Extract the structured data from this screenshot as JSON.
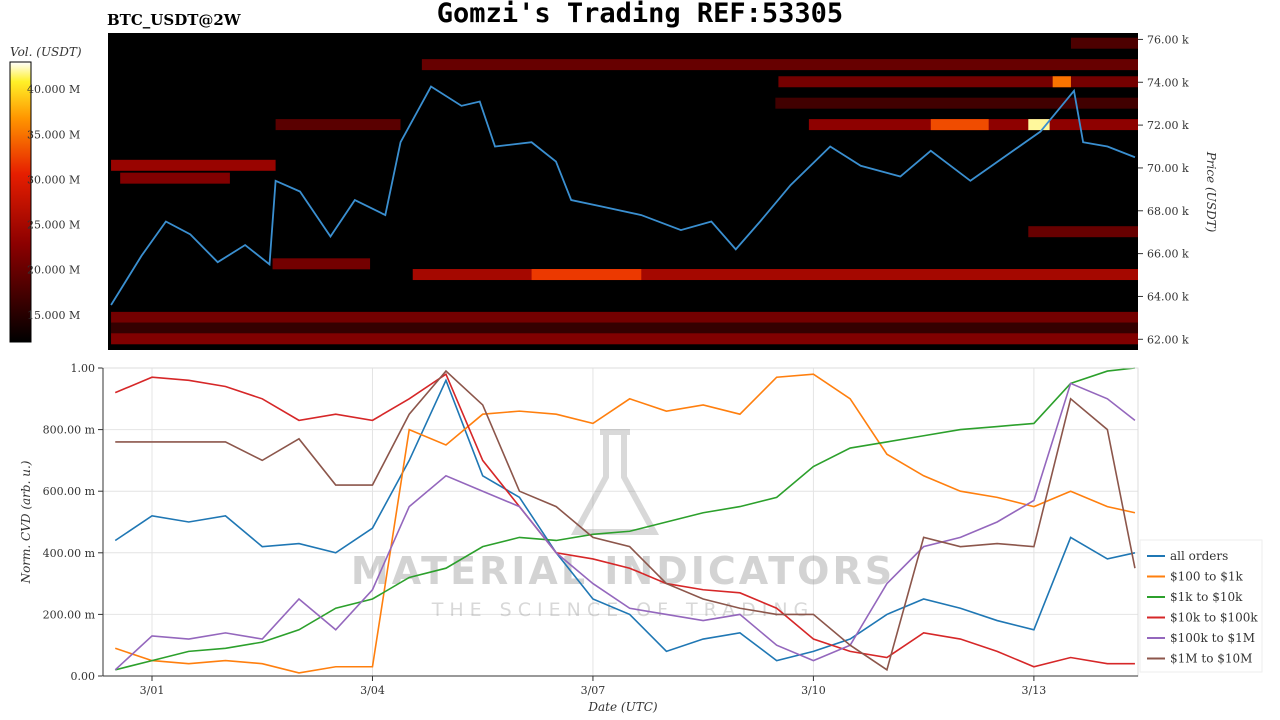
{
  "header": {
    "title": "Gomzi's Trading REF:53305",
    "pair": "BTC_USDT@2W"
  },
  "watermark": {
    "line1": "MATERIAL INDICATORS",
    "line2": "THE SCIENCE OF TRADING"
  },
  "chart_data": [
    {
      "type": "heatmap",
      "ylabel": "Price (USDT)",
      "ylim": [
        61.5,
        76.3
      ],
      "yticks": [
        62,
        64,
        66,
        68,
        70,
        72,
        74,
        76
      ],
      "ytick_labels": [
        "62.00 k",
        "64.00 k",
        "66.00 k",
        "68.00 k",
        "70.00 k",
        "72.00 k",
        "74.00 k",
        "76.00 k"
      ],
      "xlim": [
        "2/29 08:00",
        "3/14 10:00"
      ],
      "colorbar": {
        "label": "Vol. (USDT)",
        "range": [
          12,
          43
        ],
        "ticks": [
          15,
          20,
          25,
          30,
          35,
          40
        ],
        "tick_labels": [
          "15.000 M",
          "20.000 M",
          "25.000 M",
          "30.000 M",
          "35.000 M",
          "40.000 M"
        ],
        "colormap": "hot"
      },
      "bands": [
        {
          "price": 75.8,
          "start": "3/13 12:00",
          "end": "3/14 10:00",
          "volume": 18
        },
        {
          "price": 74.8,
          "start": "3/04 15:00",
          "end": "3/14 10:00",
          "volume": 20
        },
        {
          "price": 74.0,
          "start": "3/09 12:00",
          "end": "3/14 10:00",
          "volume": 21
        },
        {
          "price": 74.0,
          "start": "3/13 06:00",
          "end": "3/13 12:00",
          "volume": 35
        },
        {
          "price": 73.0,
          "start": "3/09 11:00",
          "end": "3/14 10:00",
          "volume": 17
        },
        {
          "price": 72.0,
          "start": "3/02 15:00",
          "end": "3/04 08:00",
          "volume": 19
        },
        {
          "price": 72.0,
          "start": "3/09 22:00",
          "end": "3/14 10:00",
          "volume": 23
        },
        {
          "price": 72.0,
          "start": "3/11 14:00",
          "end": "3/12 09:00",
          "volume": 33
        },
        {
          "price": 72.0,
          "start": "3/12 22:00",
          "end": "3/13 05:00",
          "volume": 42
        },
        {
          "price": 70.1,
          "start": "2/29 09:00",
          "end": "3/02 15:00",
          "volume": 24
        },
        {
          "price": 69.5,
          "start": "2/29 12:00",
          "end": "3/02 00:00",
          "volume": 22
        },
        {
          "price": 67.0,
          "start": "3/12 22:00",
          "end": "3/14 10:00",
          "volume": 20
        },
        {
          "price": 65.5,
          "start": "3/02 14:00",
          "end": "3/03 22:00",
          "volume": 21
        },
        {
          "price": 65.0,
          "start": "3/04 12:00",
          "end": "3/14 10:00",
          "volume": 25
        },
        {
          "price": 65.0,
          "start": "3/06 03:00",
          "end": "3/07 15:00",
          "volume": 32
        },
        {
          "price": 63.0,
          "start": "2/29 09:00",
          "end": "3/14 10:00",
          "volume": 21
        },
        {
          "price": 62.5,
          "start": "2/29 09:00",
          "end": "3/14 10:00",
          "volume": 16
        },
        {
          "price": 62.0,
          "start": "2/29 09:00",
          "end": "3/14 10:00",
          "volume": 22
        }
      ],
      "price_line": {
        "color": "#3a8fd0",
        "x": [
          "2/29 09:00",
          "2/29 19:00",
          "3/01 03:00",
          "3/01 11:00",
          "3/01 20:00",
          "3/02 05:00",
          "3/02 13:00",
          "3/02 15:00",
          "3/02 23:00",
          "3/03 09:00",
          "3/03 17:00",
          "3/04 03:00",
          "3/04 08:00",
          "3/04 18:00",
          "3/05 04:00",
          "3/05 10:00",
          "3/05 15:00",
          "3/06 03:00",
          "3/06 11:00",
          "3/06 16:00",
          "3/07 02:00",
          "3/07 15:00",
          "3/08 04:00",
          "3/08 14:00",
          "3/08 22:00",
          "3/09 06:00",
          "3/09 16:00",
          "3/10 05:00",
          "3/10 15:00",
          "3/11 04:00",
          "3/11 14:00",
          "3/12 03:00",
          "3/12 12:00",
          "3/13 02:00",
          "3/13 13:00",
          "3/13 16:00",
          "3/14 00:00",
          "3/14 09:00"
        ],
        "y": [
          63.6,
          65.9,
          67.5,
          66.9,
          65.6,
          66.4,
          65.5,
          69.4,
          68.9,
          66.8,
          68.5,
          67.8,
          71.2,
          73.8,
          72.9,
          73.1,
          71.0,
          71.2,
          70.3,
          68.5,
          68.2,
          67.8,
          67.1,
          67.5,
          66.2,
          67.5,
          69.2,
          71.0,
          70.1,
          69.6,
          70.8,
          69.4,
          70.3,
          71.7,
          73.6,
          71.2,
          71.0,
          70.5
        ]
      }
    },
    {
      "type": "line",
      "xlabel": "Date (UTC)",
      "ylabel": "Norm. CVD (arb. u.)",
      "ylim": [
        0,
        1
      ],
      "xlim": [
        "2/29 08:00",
        "3/14 10:00"
      ],
      "xticks": [
        "3/01",
        "3/04",
        "3/07",
        "3/10",
        "3/13"
      ],
      "yticks": [
        0,
        0.2,
        0.4,
        0.6,
        0.8,
        1.0
      ],
      "ytick_labels": [
        "0.00",
        "200.00 m",
        "400.00 m",
        "600.00 m",
        "800.00 m",
        "1.00"
      ],
      "grid": true,
      "legend": "right",
      "x": [
        "2/29 12:00",
        "3/01 00:00",
        "3/01 12:00",
        "3/02 00:00",
        "3/02 12:00",
        "3/03 00:00",
        "3/03 12:00",
        "3/04 00:00",
        "3/04 12:00",
        "3/05 00:00",
        "3/05 12:00",
        "3/06 00:00",
        "3/06 12:00",
        "3/07 00:00",
        "3/07 12:00",
        "3/08 00:00",
        "3/08 12:00",
        "3/09 00:00",
        "3/09 12:00",
        "3/10 00:00",
        "3/10 12:00",
        "3/11 00:00",
        "3/11 12:00",
        "3/12 00:00",
        "3/12 12:00",
        "3/13 00:00",
        "3/13 12:00",
        "3/14 00:00",
        "3/14 09:00"
      ],
      "series": [
        {
          "name": "all orders",
          "color": "#1f77b4",
          "values": [
            0.44,
            0.52,
            0.5,
            0.52,
            0.42,
            0.43,
            0.4,
            0.48,
            0.7,
            0.96,
            0.65,
            0.58,
            0.4,
            0.25,
            0.2,
            0.08,
            0.12,
            0.14,
            0.05,
            0.08,
            0.12,
            0.2,
            0.25,
            0.22,
            0.18,
            0.15,
            0.45,
            0.38,
            0.4
          ]
        },
        {
          "name": "$100 to $1k",
          "color": "#ff7f0e",
          "values": [
            0.09,
            0.05,
            0.04,
            0.05,
            0.04,
            0.01,
            0.03,
            0.03,
            0.8,
            0.75,
            0.85,
            0.86,
            0.85,
            0.82,
            0.9,
            0.86,
            0.88,
            0.85,
            0.97,
            0.98,
            0.9,
            0.72,
            0.65,
            0.6,
            0.58,
            0.55,
            0.6,
            0.55,
            0.53
          ]
        },
        {
          "name": "$1k to $10k",
          "color": "#2ca02c",
          "values": [
            0.02,
            0.05,
            0.08,
            0.09,
            0.11,
            0.15,
            0.22,
            0.25,
            0.32,
            0.35,
            0.42,
            0.45,
            0.44,
            0.46,
            0.47,
            0.5,
            0.53,
            0.55,
            0.58,
            0.68,
            0.74,
            0.76,
            0.78,
            0.8,
            0.81,
            0.82,
            0.95,
            0.99,
            1.0
          ]
        },
        {
          "name": "$10k to $100k",
          "color": "#d62728",
          "values": [
            0.92,
            0.97,
            0.96,
            0.94,
            0.9,
            0.83,
            0.85,
            0.83,
            0.9,
            0.98,
            0.7,
            0.55,
            0.4,
            0.38,
            0.35,
            0.3,
            0.28,
            0.27,
            0.22,
            0.12,
            0.08,
            0.06,
            0.14,
            0.12,
            0.08,
            0.03,
            0.06,
            0.04,
            0.04
          ]
        },
        {
          "name": "$100k to $1M",
          "color": "#9467bd",
          "values": [
            0.02,
            0.13,
            0.12,
            0.14,
            0.12,
            0.25,
            0.15,
            0.28,
            0.55,
            0.65,
            0.6,
            0.55,
            0.4,
            0.3,
            0.22,
            0.2,
            0.18,
            0.2,
            0.1,
            0.05,
            0.1,
            0.3,
            0.42,
            0.45,
            0.5,
            0.57,
            0.95,
            0.9,
            0.83
          ]
        },
        {
          "name": "$1M to $10M",
          "color": "#8c564b",
          "values": [
            0.76,
            0.76,
            0.76,
            0.76,
            0.7,
            0.77,
            0.62,
            0.62,
            0.85,
            0.99,
            0.88,
            0.6,
            0.55,
            0.45,
            0.42,
            0.3,
            0.25,
            0.22,
            0.2,
            0.2,
            0.1,
            0.02,
            0.45,
            0.42,
            0.43,
            0.42,
            0.9,
            0.8,
            0.35
          ]
        }
      ]
    }
  ]
}
